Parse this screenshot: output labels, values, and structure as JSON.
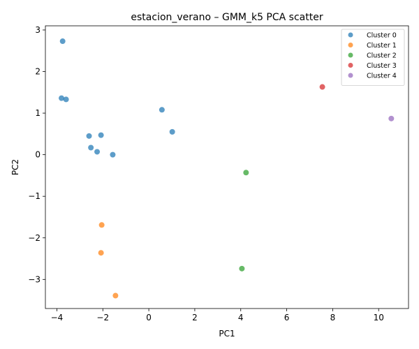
{
  "chart_data": {
    "type": "scatter",
    "title": "estacion_verano – GMM_k5 PCA scatter",
    "xlabel": "PC1",
    "ylabel": "PC2",
    "xlim": [
      -4.5,
      11.3
    ],
    "ylim": [
      -3.7,
      3.1
    ],
    "xticks": [
      -4,
      -2,
      0,
      2,
      4,
      6,
      8,
      10
    ],
    "yticks": [
      -3,
      -2,
      -1,
      0,
      1,
      2,
      3
    ],
    "grid": false,
    "legend_position": "top-right",
    "series": [
      {
        "name": "Cluster 0",
        "color": "#1f77b4",
        "points": [
          {
            "x": -3.75,
            "y": 2.73
          },
          {
            "x": -3.8,
            "y": 1.36
          },
          {
            "x": -3.6,
            "y": 1.33
          },
          {
            "x": 0.57,
            "y": 1.08
          },
          {
            "x": 1.02,
            "y": 0.55
          },
          {
            "x": -2.6,
            "y": 0.45
          },
          {
            "x": -2.08,
            "y": 0.47
          },
          {
            "x": -2.52,
            "y": 0.17
          },
          {
            "x": -2.25,
            "y": 0.07
          },
          {
            "x": -1.57,
            "y": 0.0
          }
        ]
      },
      {
        "name": "Cluster 1",
        "color": "#ff7f0e",
        "points": [
          {
            "x": -2.05,
            "y": -1.69
          },
          {
            "x": -2.08,
            "y": -2.36
          },
          {
            "x": -1.45,
            "y": -3.39
          }
        ]
      },
      {
        "name": "Cluster 2",
        "color": "#2ca02c",
        "points": [
          {
            "x": 4.23,
            "y": -0.43
          },
          {
            "x": 4.05,
            "y": -2.74
          }
        ]
      },
      {
        "name": "Cluster 3",
        "color": "#d62728",
        "points": [
          {
            "x": 7.55,
            "y": 1.63
          }
        ]
      },
      {
        "name": "Cluster 4",
        "color": "#9467bd",
        "points": [
          {
            "x": 10.55,
            "y": 0.87
          }
        ]
      }
    ]
  }
}
